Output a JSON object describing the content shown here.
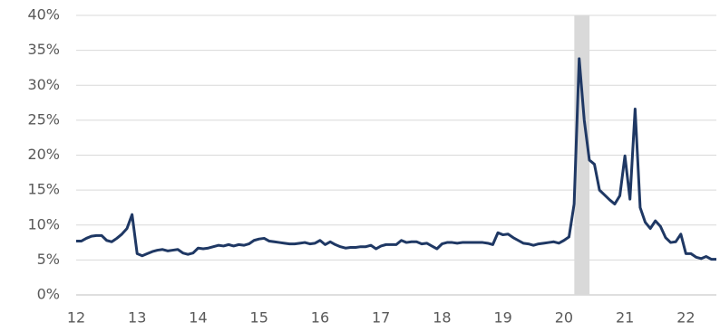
{
  "chart_data": {
    "type": "line",
    "color": "#1f3864",
    "grid": true,
    "shade_color": "#d9d9d9",
    "shaded_region": [
      20.17,
      20.42
    ],
    "x": [
      12,
      12.083,
      12.167,
      12.25,
      12.333,
      12.417,
      12.5,
      12.583,
      12.667,
      12.75,
      12.833,
      12.917,
      13,
      13.083,
      13.167,
      13.25,
      13.333,
      13.417,
      13.5,
      13.583,
      13.667,
      13.75,
      13.833,
      13.917,
      14,
      14.083,
      14.167,
      14.25,
      14.333,
      14.417,
      14.5,
      14.583,
      14.667,
      14.75,
      14.833,
      14.917,
      15,
      15.083,
      15.167,
      15.25,
      15.333,
      15.417,
      15.5,
      15.583,
      15.667,
      15.75,
      15.833,
      15.917,
      16,
      16.083,
      16.167,
      16.25,
      16.333,
      16.417,
      16.5,
      16.583,
      16.667,
      16.75,
      16.833,
      16.917,
      17,
      17.083,
      17.167,
      17.25,
      17.333,
      17.417,
      17.5,
      17.583,
      17.667,
      17.75,
      17.833,
      17.917,
      18,
      18.083,
      18.167,
      18.25,
      18.333,
      18.417,
      18.5,
      18.583,
      18.667,
      18.75,
      18.833,
      18.917,
      19,
      19.083,
      19.167,
      19.25,
      19.333,
      19.417,
      19.5,
      19.583,
      19.667,
      19.75,
      19.833,
      19.917,
      20,
      20.083,
      20.167,
      20.25,
      20.333,
      20.417,
      20.5,
      20.583,
      20.667,
      20.75,
      20.833,
      20.917,
      21,
      21.083,
      21.167,
      21.25,
      21.333,
      21.417,
      21.5,
      21.583,
      21.667,
      21.75,
      21.833,
      21.917,
      22,
      22.083,
      22.167,
      22.25,
      22.333,
      22.417,
      22.5
    ],
    "values": [
      7.7,
      7.7,
      8.1,
      8.4,
      8.5,
      8.5,
      7.8,
      7.6,
      8.1,
      8.7,
      9.5,
      11.5,
      5.9,
      5.6,
      5.9,
      6.2,
      6.4,
      6.5,
      6.3,
      6.4,
      6.5,
      6.0,
      5.8,
      6.0,
      6.7,
      6.6,
      6.7,
      6.9,
      7.1,
      7.0,
      7.2,
      7.0,
      7.2,
      7.1,
      7.3,
      7.8,
      8.0,
      8.1,
      7.7,
      7.6,
      7.5,
      7.4,
      7.3,
      7.3,
      7.4,
      7.5,
      7.3,
      7.4,
      7.8,
      7.2,
      7.6,
      7.2,
      6.9,
      6.7,
      6.8,
      6.8,
      6.9,
      6.9,
      7.1,
      6.6,
      7.0,
      7.2,
      7.2,
      7.2,
      7.8,
      7.5,
      7.6,
      7.6,
      7.3,
      7.4,
      7.0,
      6.6,
      7.3,
      7.5,
      7.5,
      7.4,
      7.5,
      7.5,
      7.5,
      7.5,
      7.5,
      7.4,
      7.2,
      8.9,
      8.6,
      8.7,
      8.2,
      7.8,
      7.4,
      7.3,
      7.1,
      7.3,
      7.4,
      7.5,
      7.6,
      7.4,
      7.8,
      8.3,
      13.0,
      33.8,
      25.0,
      19.3,
      18.7,
      15.0,
      14.3,
      13.6,
      13.0,
      14.2,
      19.9,
      13.7,
      26.6,
      12.5,
      10.4,
      9.5,
      10.6,
      9.8,
      8.2,
      7.5,
      7.6,
      8.7,
      5.9,
      5.9,
      5.4,
      5.2,
      5.5,
      5.1,
      5.1
    ],
    "xlim": [
      12,
      22.5
    ],
    "xticks": [
      12,
      13,
      14,
      15,
      16,
      17,
      18,
      19,
      20,
      21,
      22
    ],
    "ylim": [
      0,
      40
    ],
    "yticks": [
      {
        "value": 0,
        "label": "0%"
      },
      {
        "value": 5,
        "label": "5%"
      },
      {
        "value": 10,
        "label": "10%"
      },
      {
        "value": 15,
        "label": "15%"
      },
      {
        "value": 20,
        "label": "20%"
      },
      {
        "value": 25,
        "label": "25%"
      },
      {
        "value": 30,
        "label": "30%"
      },
      {
        "value": 35,
        "label": "35%"
      },
      {
        "value": 40,
        "label": "40%"
      }
    ]
  }
}
